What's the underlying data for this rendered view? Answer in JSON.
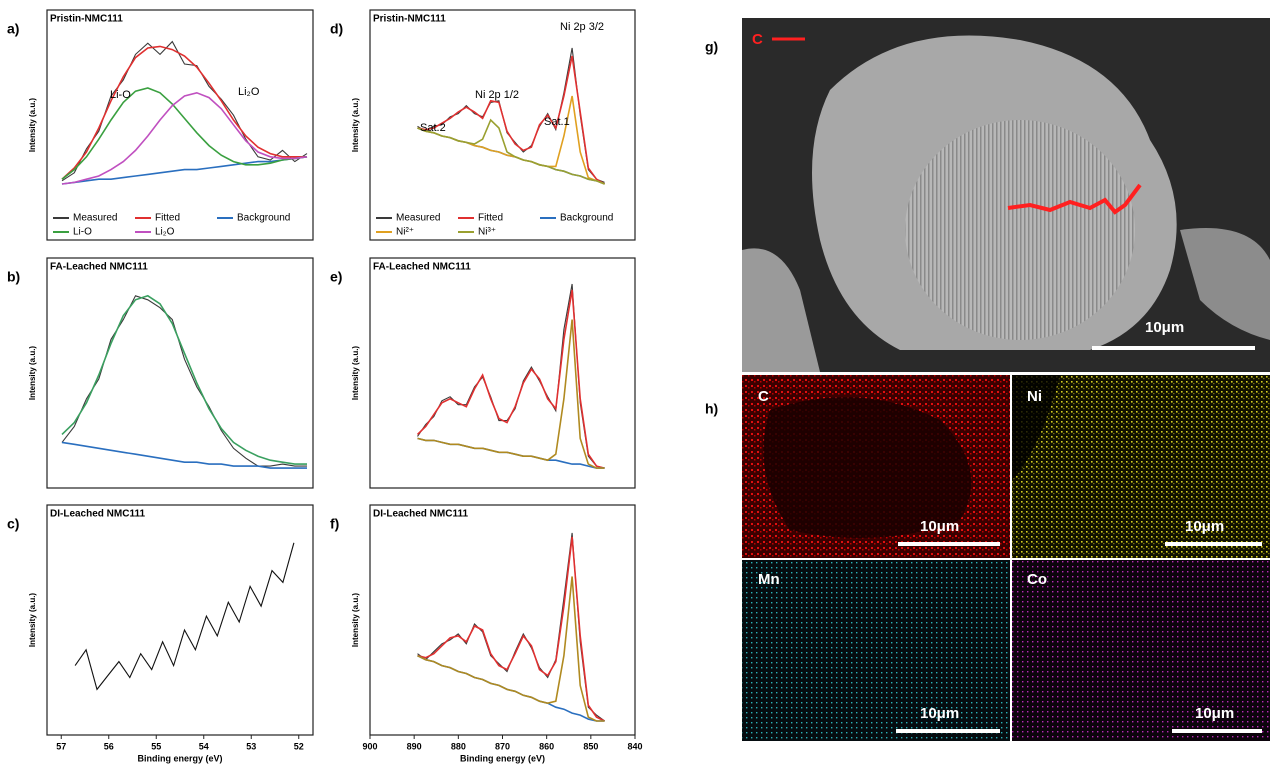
{
  "chart_data": [
    {
      "type": "line",
      "panel_label": "a)",
      "title": "Pristin-NMC111",
      "y_label": "Intensity (a.u.)",
      "x": [
        57,
        56.75,
        56.5,
        56.25,
        56,
        55.75,
        55.5,
        55.25,
        55,
        54.75,
        54.5,
        54.25,
        54,
        53.75,
        53.5,
        53.25,
        53,
        52.75,
        52.5,
        52.25,
        52
      ],
      "xlim": [
        57,
        52
      ],
      "ylim": [
        0,
        100
      ],
      "legend": "bottom",
      "annotations": [
        "Li-O",
        "Li₂O"
      ],
      "series": [
        {
          "name": "Measured",
          "color": "#3a3a3a",
          "values": [
            7,
            12,
            27,
            38,
            60,
            70,
            86,
            93,
            86,
            94,
            80,
            79,
            66,
            58,
            48,
            33,
            22,
            20,
            26,
            19,
            24
          ]
        },
        {
          "name": "Fitted",
          "color": "#e03030",
          "values": [
            8,
            15,
            25,
            40,
            57,
            72,
            84,
            90,
            91,
            89,
            85,
            78,
            68,
            57,
            45,
            35,
            28,
            24,
            22,
            22,
            22
          ]
        },
        {
          "name": "Background",
          "color": "#2a6fbf",
          "values": [
            5,
            6,
            7,
            8,
            8,
            9,
            10,
            11,
            12,
            13,
            14,
            14,
            15,
            16,
            17,
            18,
            19,
            19,
            20,
            21,
            22
          ]
        },
        {
          "name": "Li-O",
          "color": "#3aa040",
          "values": [
            8,
            14,
            22,
            33,
            45,
            56,
            63,
            65,
            62,
            55,
            46,
            37,
            29,
            23,
            19,
            17,
            17,
            18,
            20,
            21,
            22
          ]
        },
        {
          "name": "Li₂O",
          "color": "#c050c0",
          "values": [
            5,
            6,
            8,
            10,
            14,
            19,
            26,
            35,
            45,
            54,
            60,
            62,
            59,
            52,
            42,
            32,
            25,
            22,
            21,
            21,
            22
          ]
        }
      ]
    },
    {
      "type": "line",
      "panel_label": "b)",
      "title": "FA-Leached NMC111",
      "y_label": "Intensity (a.u.)",
      "x": [
        57,
        56.75,
        56.5,
        56.25,
        56,
        55.75,
        55.5,
        55.25,
        55,
        54.75,
        54.5,
        54.25,
        54,
        53.75,
        53.5,
        53.25,
        53,
        52.75,
        52.5,
        52.25,
        52
      ],
      "xlim": [
        57,
        52
      ],
      "ylim": [
        0,
        100
      ],
      "series": [
        {
          "color": "#3a3a3a",
          "values": [
            18,
            26,
            40,
            50,
            70,
            80,
            92,
            90,
            86,
            80,
            60,
            46,
            36,
            24,
            15,
            10,
            6,
            6,
            7,
            6,
            6
          ]
        },
        {
          "color": "#3aa060",
          "values": [
            22,
            28,
            38,
            52,
            68,
            82,
            90,
            92,
            88,
            78,
            63,
            48,
            35,
            25,
            18,
            14,
            11,
            9,
            8,
            7,
            7
          ]
        },
        {
          "color": "#2a6fbf",
          "values": [
            18,
            17,
            16,
            15,
            14,
            13,
            12,
            11,
            10,
            9,
            8,
            8,
            7,
            7,
            6,
            6,
            6,
            5,
            5,
            5,
            5
          ]
        }
      ]
    },
    {
      "type": "line",
      "panel_label": "c)",
      "title": "DI-Leached NMC111",
      "y_label": "Intensity (a.u.)",
      "x_label": "Binding energy (eV)",
      "x": [
        57,
        56.75,
        56.5,
        56.25,
        56,
        55.75,
        55.5,
        55.25,
        55,
        54.75,
        54.5,
        54.25,
        54,
        53.75,
        53.5,
        53.25,
        53,
        52.75,
        52.5,
        52.25,
        52
      ],
      "xlim": [
        57.3,
        51.7
      ],
      "xticks": [
        57,
        56,
        55,
        54,
        53,
        52
      ],
      "ylim": [
        0,
        100
      ],
      "series": [
        {
          "color": "#111111",
          "values": [
            30,
            38,
            18,
            25,
            32,
            24,
            36,
            28,
            42,
            30,
            48,
            38,
            55,
            45,
            62,
            52,
            70,
            60,
            78,
            72,
            92
          ]
        }
      ]
    },
    {
      "type": "line",
      "panel_label": "d)",
      "title": "Pristin-NMC111",
      "y_label": "Intensity (a.u.)",
      "x": [
        892,
        890,
        888,
        886,
        884,
        882,
        880,
        878,
        876,
        874,
        872,
        870,
        868,
        866,
        864,
        862,
        860,
        858,
        856,
        854,
        852,
        850,
        848,
        846
      ],
      "xlim": [
        900,
        840
      ],
      "ylim": [
        0,
        100
      ],
      "legend": "bottom",
      "annotations": [
        "Sat.2",
        "Ni 2p 1/2",
        "Sat.1",
        "Ni 2p 3/2"
      ],
      "series": [
        {
          "name": "Measured",
          "color": "#3a3a3a",
          "values": [
            41,
            38,
            41,
            42,
            47,
            49,
            54,
            49,
            47,
            56,
            57,
            37,
            31,
            25,
            29,
            41,
            49,
            39,
            62,
            90,
            48,
            14,
            8,
            6
          ]
        },
        {
          "name": "Fitted",
          "color": "#e03030",
          "values": [
            40,
            39,
            40,
            43,
            46,
            50,
            53,
            50,
            46,
            57,
            56,
            38,
            30,
            26,
            28,
            42,
            48,
            40,
            60,
            85,
            50,
            15,
            8,
            5
          ]
        },
        {
          "name": "Background",
          "color": "#2a6fbf",
          "values": [
            40,
            38,
            37,
            35,
            34,
            32,
            31,
            29,
            28,
            26,
            25,
            23,
            22,
            20,
            19,
            17,
            16,
            14,
            13,
            11,
            10,
            8,
            7,
            5
          ]
        },
        {
          "name": "Ni²⁺",
          "color": "#e0a020",
          "values": [
            40,
            38,
            37,
            35,
            34,
            32,
            31,
            29,
            28,
            26,
            25,
            23,
            22,
            20,
            19,
            17,
            16,
            16,
            35,
            60,
            25,
            9,
            7,
            5
          ]
        },
        {
          "name": "Ni³⁺",
          "color": "#9aa030",
          "values": [
            40,
            38,
            37,
            35,
            34,
            32,
            31,
            30,
            33,
            45,
            40,
            25,
            22,
            20,
            19,
            17,
            16,
            14,
            13,
            11,
            10,
            8,
            7,
            5
          ]
        }
      ]
    },
    {
      "type": "line",
      "panel_label": "e)",
      "title": "FA-Leached NMC111",
      "y_label": "Intensity (a.u.)",
      "x": [
        892,
        890,
        888,
        886,
        884,
        882,
        880,
        878,
        876,
        874,
        872,
        870,
        868,
        866,
        864,
        862,
        860,
        858,
        856,
        854,
        852,
        850,
        848,
        846
      ],
      "xlim": [
        900,
        840
      ],
      "ylim": [
        0,
        100
      ],
      "series": [
        {
          "color": "#3a3a3a",
          "values": [
            21,
            27,
            31,
            39,
            41,
            37,
            37,
            46,
            51,
            41,
            29,
            29,
            35,
            49,
            56,
            49,
            41,
            34,
            75,
            98,
            38,
            11,
            6,
            5
          ]
        },
        {
          "color": "#e03030",
          "values": [
            22,
            26,
            32,
            38,
            40,
            38,
            36,
            45,
            52,
            40,
            30,
            28,
            36,
            48,
            55,
            50,
            40,
            35,
            70,
            95,
            40,
            12,
            6,
            5
          ]
        },
        {
          "color": "#2a6fbf",
          "values": [
            20,
            19,
            19,
            18,
            17,
            17,
            16,
            15,
            15,
            14,
            13,
            13,
            12,
            11,
            11,
            10,
            9,
            9,
            8,
            7,
            7,
            6,
            5,
            5
          ]
        },
        {
          "color": "#b08a20",
          "values": [
            20,
            19,
            19,
            18,
            17,
            17,
            16,
            15,
            15,
            14,
            13,
            13,
            12,
            11,
            11,
            10,
            9,
            12,
            40,
            80,
            20,
            7,
            5,
            5
          ]
        }
      ]
    },
    {
      "type": "line",
      "panel_label": "f)",
      "title": "DI-Leached NMC111",
      "y_label": "Intensity (a.u.)",
      "x_label": "Binding energy (eV)",
      "x": [
        892,
        890,
        888,
        886,
        884,
        882,
        880,
        878,
        876,
        874,
        872,
        870,
        868,
        866,
        864,
        862,
        860,
        858,
        856,
        854,
        852,
        850,
        848,
        846
      ],
      "xlim": [
        900,
        840
      ],
      "xticks": [
        900,
        890,
        880,
        870,
        860,
        850,
        840
      ],
      "ylim": [
        0,
        100
      ],
      "series": [
        {
          "color": "#3a3a3a",
          "values": [
            36,
            33,
            37,
            41,
            43,
            46,
            41,
            51,
            47,
            35,
            31,
            27,
            37,
            46,
            39,
            29,
            24,
            33,
            64,
            97,
            42,
            9,
            5,
            2
          ]
        },
        {
          "color": "#e03030",
          "values": [
            35,
            34,
            36,
            40,
            44,
            45,
            42,
            50,
            48,
            36,
            30,
            28,
            36,
            45,
            40,
            28,
            25,
            32,
            60,
            95,
            45,
            10,
            4,
            2
          ]
        },
        {
          "color": "#2a6fbf",
          "values": [
            35,
            33,
            32,
            30,
            29,
            27,
            26,
            24,
            23,
            21,
            20,
            18,
            17,
            15,
            14,
            12,
            11,
            9,
            8,
            6,
            5,
            3,
            2,
            2
          ]
        },
        {
          "color": "#b08a20",
          "values": [
            35,
            33,
            32,
            30,
            29,
            27,
            26,
            24,
            23,
            21,
            20,
            18,
            17,
            15,
            14,
            12,
            11,
            12,
            35,
            75,
            20,
            4,
            2,
            2
          ]
        }
      ]
    }
  ],
  "figure": {
    "g": {
      "label": "g)",
      "element": "C",
      "scale_bar": "10μm"
    },
    "h": {
      "label": "h)",
      "maps": [
        {
          "element": "C",
          "scale_bar": "10μm"
        },
        {
          "element": "Ni",
          "scale_bar": "10μm"
        },
        {
          "element": "Mn",
          "scale_bar": "10μm"
        },
        {
          "element": "Co",
          "scale_bar": "10μm"
        }
      ]
    }
  }
}
